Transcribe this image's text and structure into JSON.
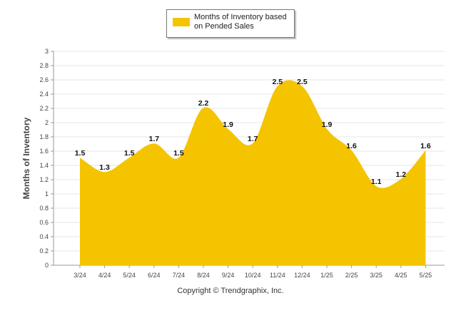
{
  "chart_data": {
    "type": "area",
    "categories": [
      "3/24",
      "4/24",
      "5/24",
      "6/24",
      "7/24",
      "8/24",
      "9/24",
      "10/24",
      "11/24",
      "12/24",
      "1/25",
      "2/25",
      "3/25",
      "4/25",
      "5/25"
    ],
    "series": [
      {
        "name": "Months of Inventory based\non Pended Sales",
        "values": [
          1.5,
          1.3,
          1.5,
          1.7,
          1.5,
          2.2,
          1.9,
          1.7,
          2.5,
          2.5,
          1.9,
          1.6,
          1.1,
          1.2,
          1.6
        ],
        "color": "#F5C400"
      }
    ],
    "ylabel": "Months of Inventory",
    "ylim": [
      0,
      3
    ],
    "yticks": [
      "0",
      "0.2",
      "0.4",
      "0.6",
      "0.8",
      "1",
      "1.2",
      "1.4",
      "1.6",
      "1.8",
      "2",
      "2.2",
      "2.4",
      "2.6",
      "2.8",
      "3"
    ],
    "grid": true,
    "legend_position": "top-center",
    "footer": "Copyright © Trendgraphix, Inc."
  }
}
